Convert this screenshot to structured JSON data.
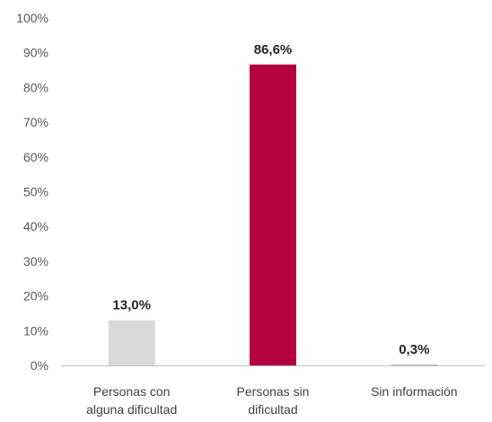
{
  "chart_data": {
    "type": "bar",
    "categories": [
      [
        "Personas con",
        "alguna dificultad"
      ],
      [
        "Personas sin",
        "dificultad"
      ],
      [
        "Sin información"
      ]
    ],
    "values": [
      13.0,
      86.6,
      0.3
    ],
    "data_labels": [
      "13,0%",
      "86,6%",
      "0,3%"
    ],
    "colors": [
      "#d9d9d9",
      "#b5003f",
      "#bfbfbf"
    ],
    "y_ticks": [
      0,
      10,
      20,
      30,
      40,
      50,
      60,
      70,
      80,
      90,
      100
    ],
    "y_tick_labels": [
      "0%",
      "10%",
      "20%",
      "30%",
      "40%",
      "50%",
      "60%",
      "70%",
      "80%",
      "90%",
      "100%"
    ],
    "ylim": [
      0,
      100
    ],
    "grid": false,
    "legend": "none",
    "axis_color": "#bfbfbf"
  }
}
